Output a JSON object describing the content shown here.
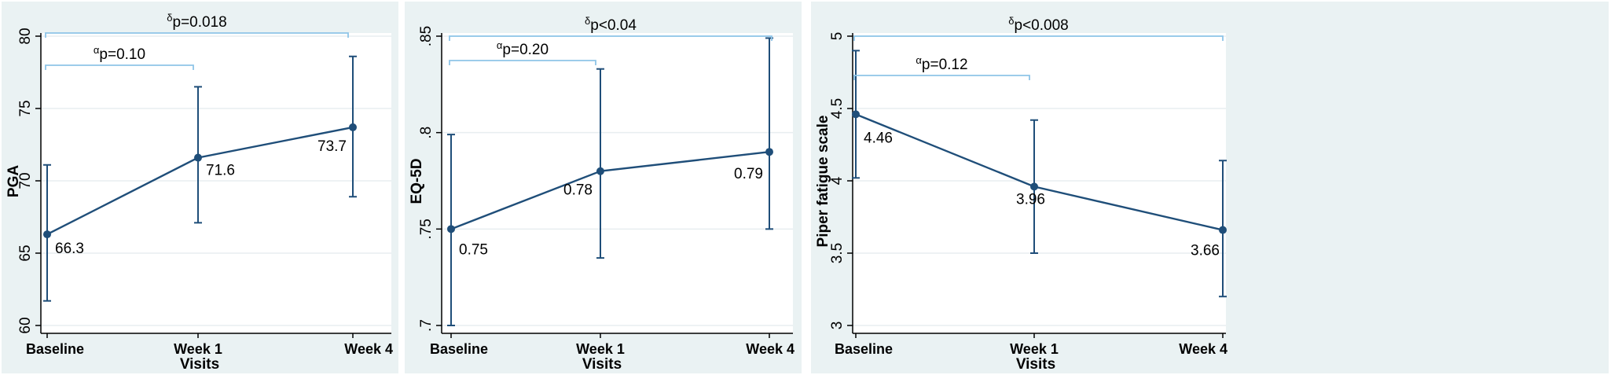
{
  "chart_data": [
    {
      "type": "line",
      "ylabel": "PGA",
      "xlabel": "Visits",
      "categories": [
        "Baseline",
        "Week 1",
        "Week 4"
      ],
      "ylim": [
        60,
        80
      ],
      "yticks": [
        60,
        65,
        70,
        75,
        80
      ],
      "ytick_labels": [
        "60",
        "65",
        "70",
        "75",
        "80"
      ],
      "grid": true,
      "series": [
        {
          "values": [
            66.3,
            71.6,
            73.7
          ],
          "ci_low": [
            61.7,
            67.1,
            68.9
          ],
          "ci_high": [
            71.1,
            76.5,
            78.6
          ],
          "labels": [
            "66.3",
            "71.6",
            "73.7"
          ],
          "color": "#1f4e79"
        }
      ],
      "annotations": [
        {
          "sup": "δ",
          "text": "p=0.018",
          "from": 0,
          "to": 2
        },
        {
          "sup": "α",
          "text": "p=0.10",
          "from": 0,
          "to": 1
        }
      ]
    },
    {
      "type": "line",
      "ylabel": "EQ-5D",
      "xlabel": "Visits",
      "categories": [
        "Baseline",
        "Week 1",
        "Week 4"
      ],
      "ylim": [
        0.7,
        0.85
      ],
      "yticks": [
        0.7,
        0.75,
        0.8,
        0.85
      ],
      "ytick_labels": [
        ".7",
        ".75",
        ".8",
        ".85"
      ],
      "grid": true,
      "series": [
        {
          "values": [
            0.75,
            0.78,
            0.79
          ],
          "ci_low": [
            0.7,
            0.735,
            0.75
          ],
          "ci_high": [
            0.799,
            0.833,
            0.849
          ],
          "labels": [
            "0.75",
            "0.78",
            "0.79"
          ],
          "color": "#1f4e79"
        }
      ],
      "annotations": [
        {
          "sup": "δ",
          "text": "p<0.04",
          "from": 0,
          "to": 2
        },
        {
          "sup": "α",
          "text": "p=0.20",
          "from": 0,
          "to": 1
        }
      ]
    },
    {
      "type": "line",
      "ylabel": "Piper fatigue scale",
      "xlabel": "Visits",
      "categories": [
        "Baseline",
        "Week 1",
        "Week 4"
      ],
      "ylim": [
        3,
        5
      ],
      "yticks": [
        3,
        3.5,
        4,
        4.5,
        5
      ],
      "ytick_labels": [
        "3",
        "3.5",
        "4",
        "4.5",
        "5"
      ],
      "grid": true,
      "series": [
        {
          "values": [
            4.46,
            3.96,
            3.66
          ],
          "ci_low": [
            4.02,
            3.5,
            3.2
          ],
          "ci_high": [
            4.9,
            4.42,
            4.14
          ],
          "labels": [
            "4.46",
            "3.96",
            "3.66"
          ],
          "color": "#1f4e79"
        }
      ],
      "annotations": [
        {
          "sup": "δ",
          "text": "p<0.008",
          "from": 0,
          "to": 2
        },
        {
          "sup": "α",
          "text": "p=0.12",
          "from": 0,
          "to": 1
        }
      ]
    }
  ]
}
